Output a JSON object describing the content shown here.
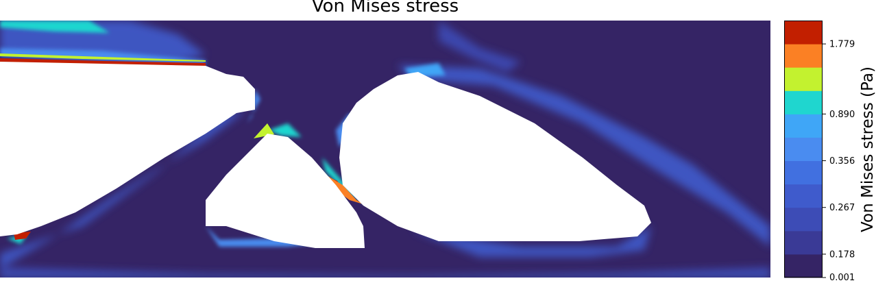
{
  "chart_data": {
    "type": "heatmap",
    "title": "Von Mises stress",
    "colorbar": {
      "label": "Von Mises stress (Pa)",
      "tick_labels": [
        "0.001",
        "0.178",
        "0.267",
        "0.356",
        "0.890",
        "1.779"
      ],
      "levels": 11,
      "colors": [
        "#352465",
        "#3a3a96",
        "#3d4cb6",
        "#3f5bcc",
        "#4170e0",
        "#4a8cf0",
        "#3fa6f7",
        "#1fd6cf",
        "#c3f22f",
        "#fb8024",
        "#c21f00"
      ]
    },
    "grid": false,
    "structure_field": "topology-optimized truss; low stress dominates, peaks along top-left edge and central diagonal junction"
  }
}
